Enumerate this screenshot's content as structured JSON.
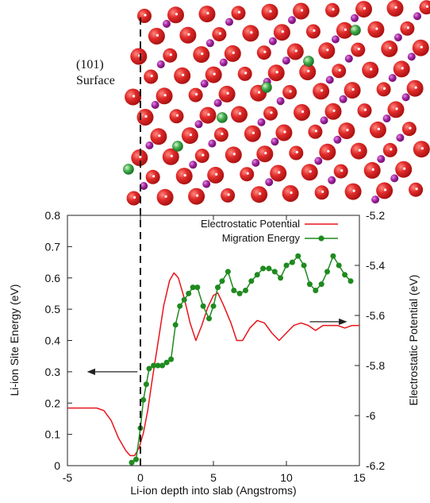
{
  "structure": {
    "surface_label_line1": "(101)",
    "surface_label_line2": "Surface",
    "atom_colors": {
      "oxygen": "#e02a2a",
      "metal": "#a2229e",
      "lithium": "#3fae4a"
    }
  },
  "chart_data": {
    "type": "line",
    "xlabel": "Li-ion depth into slab (Angstroms)",
    "ylabel": "Li-ion Site Energy (eV)",
    "y2label": "Electrostatic Potential (eV)",
    "xlim": [
      -5,
      15
    ],
    "ylim": [
      0,
      0.8
    ],
    "y2lim": [
      -6.2,
      -5.2
    ],
    "xticks": [
      "-5",
      "0",
      "5",
      "10",
      "15"
    ],
    "yticks": [
      "0",
      "0.1",
      "0.2",
      "0.3",
      "0.4",
      "0.5",
      "0.6",
      "0.7",
      "0.8"
    ],
    "y2ticks": [
      "-6.2",
      "-6",
      "-5.8",
      "-5.6",
      "-5.4",
      "-5.2"
    ],
    "legend_position": "top-right",
    "surface_x": 0,
    "series": [
      {
        "name": "Electrostatic Potential",
        "axis": "right",
        "color": "#e8141c",
        "points": [
          [
            -5,
            -5.97
          ],
          [
            -4,
            -5.97
          ],
          [
            -3,
            -5.97
          ],
          [
            -2.5,
            -5.98
          ],
          [
            -2,
            -6.02
          ],
          [
            -1.5,
            -6.09
          ],
          [
            -1,
            -6.14
          ],
          [
            -0.7,
            -6.16
          ],
          [
            -0.4,
            -6.16
          ],
          [
            -0.1,
            -6.13
          ],
          [
            0.2,
            -6.07
          ],
          [
            0.5,
            -5.98
          ],
          [
            0.8,
            -5.86
          ],
          [
            1.2,
            -5.71
          ],
          [
            1.6,
            -5.56
          ],
          [
            2,
            -5.46
          ],
          [
            2.3,
            -5.43
          ],
          [
            2.6,
            -5.45
          ],
          [
            3,
            -5.53
          ],
          [
            3.4,
            -5.63
          ],
          [
            3.8,
            -5.7
          ],
          [
            4.2,
            -5.64
          ],
          [
            4.6,
            -5.57
          ],
          [
            5,
            -5.52
          ],
          [
            5.3,
            -5.51
          ],
          [
            5.7,
            -5.56
          ],
          [
            6.2,
            -5.63
          ],
          [
            6.6,
            -5.7
          ],
          [
            7,
            -5.7
          ],
          [
            7.5,
            -5.65
          ],
          [
            8,
            -5.62
          ],
          [
            8.5,
            -5.63
          ],
          [
            9,
            -5.67
          ],
          [
            9.5,
            -5.7
          ],
          [
            10,
            -5.67
          ],
          [
            10.5,
            -5.64
          ],
          [
            11,
            -5.63
          ],
          [
            11.5,
            -5.64
          ],
          [
            12,
            -5.66
          ],
          [
            12.5,
            -5.64
          ],
          [
            13,
            -5.64
          ],
          [
            13.5,
            -5.64
          ],
          [
            14,
            -5.65
          ],
          [
            14.5,
            -5.64
          ],
          [
            15,
            -5.64
          ]
        ]
      },
      {
        "name": "Migration Energy",
        "axis": "left",
        "color": "#1f8a1f",
        "points": [
          [
            -0.6,
            0.01
          ],
          [
            -0.3,
            0.02
          ],
          [
            0,
            0.12
          ],
          [
            0.2,
            0.21
          ],
          [
            0.4,
            0.26
          ],
          [
            0.6,
            0.31
          ],
          [
            0.9,
            0.32
          ],
          [
            1.2,
            0.32
          ],
          [
            1.5,
            0.32
          ],
          [
            1.8,
            0.33
          ],
          [
            2.1,
            0.34
          ],
          [
            2.4,
            0.45
          ],
          [
            2.7,
            0.51
          ],
          [
            3,
            0.53
          ],
          [
            3.3,
            0.55
          ],
          [
            3.6,
            0.57
          ],
          [
            3.9,
            0.57
          ],
          [
            4.3,
            0.51
          ],
          [
            4.7,
            0.47
          ],
          [
            5,
            0.51
          ],
          [
            5.3,
            0.57
          ],
          [
            5.6,
            0.59
          ],
          [
            6,
            0.62
          ],
          [
            6.4,
            0.56
          ],
          [
            6.8,
            0.55
          ],
          [
            7.2,
            0.56
          ],
          [
            7.6,
            0.59
          ],
          [
            8,
            0.61
          ],
          [
            8.4,
            0.63
          ],
          [
            8.8,
            0.63
          ],
          [
            9.2,
            0.62
          ],
          [
            9.6,
            0.6
          ],
          [
            10,
            0.64
          ],
          [
            10.4,
            0.65
          ],
          [
            10.8,
            0.67
          ],
          [
            11.2,
            0.64
          ],
          [
            11.6,
            0.58
          ],
          [
            12,
            0.56
          ],
          [
            12.4,
            0.58
          ],
          [
            12.8,
            0.62
          ],
          [
            13.2,
            0.67
          ],
          [
            13.6,
            0.64
          ],
          [
            14,
            0.61
          ],
          [
            14.4,
            0.59
          ]
        ]
      }
    ],
    "annotations": [
      {
        "type": "arrow",
        "direction": "left",
        "from": [
          -0.2,
          0.3
        ],
        "to": [
          -3.6,
          0.3
        ]
      },
      {
        "type": "arrow",
        "direction": "right",
        "from": [
          11.6,
          0.46
        ],
        "to": [
          14.1,
          0.46
        ]
      }
    ]
  }
}
